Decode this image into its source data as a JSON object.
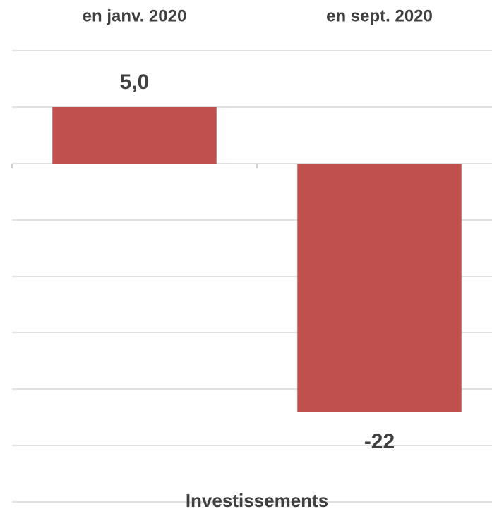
{
  "chart_data": {
    "type": "bar",
    "categories": [
      "en janv. 2020",
      "en sept. 2020"
    ],
    "values": [
      5.0,
      -22
    ],
    "value_labels": [
      "5,0",
      "-22"
    ],
    "color": "#c0504d",
    "x_label": "Investissements",
    "ylim": [
      -30,
      10
    ],
    "yticks": [
      -30,
      -25,
      -20,
      -15,
      -10,
      -5,
      0,
      5,
      10
    ],
    "grid": true
  }
}
